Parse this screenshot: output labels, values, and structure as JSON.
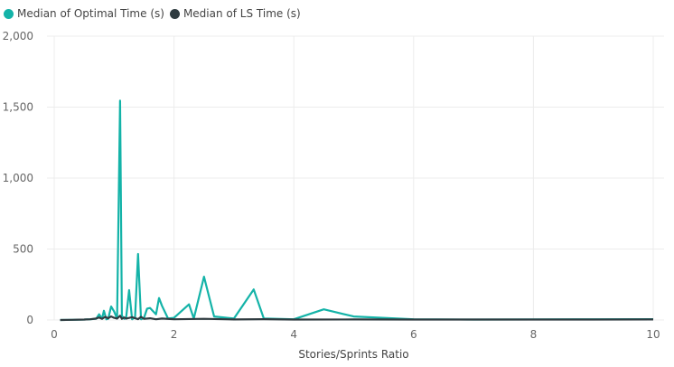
{
  "chart_data": {
    "type": "line",
    "title": "",
    "xlabel": "Stories/Sprints Ratio",
    "ylabel": "",
    "xlim": [
      0,
      10
    ],
    "ylim": [
      0,
      2000
    ],
    "x_ticks": [
      0,
      2,
      4,
      6,
      8,
      10
    ],
    "x_tick_labels": [
      "0",
      "2",
      "4",
      "6",
      "8",
      "10"
    ],
    "y_ticks": [
      0,
      500,
      1000,
      1500,
      2000
    ],
    "y_tick_labels": [
      "0",
      "500",
      "1,000",
      "1,500",
      "2,000"
    ],
    "grid": true,
    "legend_position": "top-left",
    "series": [
      {
        "name": "Median of Optimal Time (s)",
        "color": "#14B3A8",
        "x": [
          0.1,
          0.3,
          0.5,
          0.6,
          0.7,
          0.75,
          0.8,
          0.83,
          0.87,
          0.9,
          0.95,
          1.0,
          1.05,
          1.1,
          1.13,
          1.17,
          1.2,
          1.25,
          1.3,
          1.35,
          1.4,
          1.45,
          1.5,
          1.55,
          1.6,
          1.7,
          1.75,
          1.8,
          1.9,
          2.0,
          2.25,
          2.33,
          2.5,
          2.67,
          3.0,
          3.33,
          3.5,
          4.0,
          4.5,
          5.0,
          6.0,
          7.0,
          8.0,
          9.0,
          10.0
        ],
        "y": [
          0,
          1,
          3,
          5,
          8,
          40,
          10,
          65,
          5,
          8,
          95,
          60,
          10,
          1545,
          30,
          8,
          15,
          210,
          5,
          20,
          465,
          5,
          15,
          80,
          85,
          40,
          155,
          100,
          10,
          15,
          110,
          10,
          305,
          25,
          10,
          215,
          10,
          5,
          75,
          25,
          5,
          3,
          4,
          5,
          6
        ]
      },
      {
        "name": "Median of LS Time (s)",
        "color": "#2F3B40",
        "x": [
          0.1,
          0.3,
          0.5,
          0.6,
          0.7,
          0.75,
          0.8,
          0.85,
          0.9,
          0.95,
          1.0,
          1.05,
          1.1,
          1.13,
          1.17,
          1.2,
          1.3,
          1.4,
          1.45,
          1.5,
          1.6,
          1.7,
          1.8,
          2.0,
          2.5,
          3.0,
          3.5,
          4.0,
          5.0,
          6.0,
          7.0,
          8.0,
          9.0,
          10.0
        ],
        "y": [
          0,
          1,
          3,
          5,
          10,
          18,
          8,
          22,
          12,
          25,
          15,
          10,
          30,
          8,
          18,
          10,
          20,
          6,
          22,
          8,
          12,
          5,
          10,
          5,
          8,
          4,
          6,
          3,
          4,
          3,
          3,
          3,
          3,
          4
        ]
      }
    ]
  }
}
